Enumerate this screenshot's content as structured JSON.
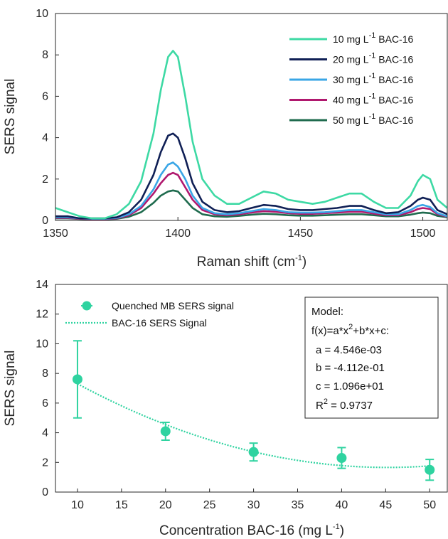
{
  "chart_data": [
    {
      "type": "line",
      "xlabel": "Raman shift (cm",
      "xlabel_sup": "-1",
      "xlabel_tail": ")",
      "ylabel": "SERS signal",
      "xlim": [
        1350,
        1510
      ],
      "ylim": [
        0,
        10
      ],
      "xticks": [
        "1350",
        "1400",
        "1450",
        "1500"
      ],
      "yticks": [
        "0",
        "2",
        "4",
        "6",
        "8",
        "10"
      ],
      "legend_position": "top-right",
      "grid": false,
      "series": [
        {
          "name_pre": "10 mg L",
          "name_sup": "-1",
          "name_post": " BAC-16",
          "color": "#3dd9a4",
          "x": [
            1350,
            1355,
            1360,
            1365,
            1370,
            1375,
            1380,
            1385,
            1390,
            1393,
            1396,
            1398,
            1400,
            1403,
            1406,
            1410,
            1415,
            1420,
            1425,
            1430,
            1435,
            1440,
            1445,
            1450,
            1455,
            1460,
            1465,
            1470,
            1475,
            1480,
            1485,
            1490,
            1495,
            1498,
            1500,
            1503,
            1506,
            1510
          ],
          "y": [
            0.6,
            0.4,
            0.2,
            0.1,
            0.1,
            0.3,
            0.8,
            1.9,
            4.2,
            6.3,
            7.9,
            8.2,
            7.9,
            6.0,
            3.8,
            2.0,
            1.2,
            0.8,
            0.8,
            1.1,
            1.4,
            1.3,
            1.0,
            0.9,
            0.8,
            0.9,
            1.1,
            1.3,
            1.3,
            0.9,
            0.6,
            0.6,
            1.2,
            1.9,
            2.2,
            2.0,
            1.0,
            0.6
          ]
        },
        {
          "name_pre": "20 mg L",
          "name_sup": "-1",
          "name_post": " BAC-16",
          "color": "#0f1f55",
          "x": [
            1350,
            1355,
            1360,
            1365,
            1370,
            1375,
            1380,
            1385,
            1390,
            1393,
            1396,
            1398,
            1400,
            1403,
            1406,
            1410,
            1415,
            1420,
            1425,
            1430,
            1435,
            1440,
            1445,
            1450,
            1455,
            1460,
            1465,
            1470,
            1475,
            1480,
            1485,
            1490,
            1495,
            1498,
            1500,
            1503,
            1506,
            1510
          ],
          "y": [
            0.2,
            0.2,
            0.1,
            0.1,
            0.1,
            0.15,
            0.4,
            1.0,
            2.2,
            3.3,
            4.1,
            4.2,
            4.0,
            3.0,
            1.8,
            0.9,
            0.5,
            0.4,
            0.45,
            0.6,
            0.75,
            0.7,
            0.55,
            0.5,
            0.5,
            0.55,
            0.6,
            0.7,
            0.7,
            0.5,
            0.35,
            0.4,
            0.7,
            1.0,
            1.1,
            1.0,
            0.5,
            0.3
          ]
        },
        {
          "name_pre": "30 mg L",
          "name_sup": "-1",
          "name_post": " BAC-16",
          "color": "#3aa6e6",
          "x": [
            1350,
            1355,
            1360,
            1365,
            1370,
            1375,
            1380,
            1385,
            1390,
            1393,
            1396,
            1398,
            1400,
            1403,
            1406,
            1410,
            1415,
            1420,
            1425,
            1430,
            1435,
            1440,
            1445,
            1450,
            1455,
            1460,
            1465,
            1470,
            1475,
            1480,
            1485,
            1490,
            1495,
            1498,
            1500,
            1503,
            1506,
            1510
          ],
          "y": [
            0.15,
            0.15,
            0.1,
            0.08,
            0.08,
            0.12,
            0.3,
            0.7,
            1.5,
            2.2,
            2.7,
            2.8,
            2.6,
            2.0,
            1.2,
            0.6,
            0.35,
            0.3,
            0.35,
            0.45,
            0.55,
            0.5,
            0.4,
            0.38,
            0.38,
            0.4,
            0.45,
            0.5,
            0.5,
            0.4,
            0.3,
            0.3,
            0.5,
            0.7,
            0.75,
            0.65,
            0.35,
            0.2
          ]
        },
        {
          "name_pre": "40 mg L",
          "name_sup": "-1",
          "name_post": " BAC-16",
          "color": "#b0186e",
          "x": [
            1350,
            1355,
            1360,
            1365,
            1370,
            1375,
            1380,
            1385,
            1390,
            1393,
            1396,
            1398,
            1400,
            1403,
            1406,
            1410,
            1415,
            1420,
            1425,
            1430,
            1435,
            1440,
            1445,
            1450,
            1455,
            1460,
            1465,
            1470,
            1475,
            1480,
            1485,
            1490,
            1495,
            1498,
            1500,
            1503,
            1506,
            1510
          ],
          "y": [
            0.12,
            0.12,
            0.08,
            0.06,
            0.06,
            0.1,
            0.25,
            0.6,
            1.3,
            1.8,
            2.2,
            2.3,
            2.2,
            1.6,
            1.0,
            0.5,
            0.3,
            0.25,
            0.3,
            0.38,
            0.45,
            0.42,
            0.35,
            0.32,
            0.32,
            0.35,
            0.38,
            0.42,
            0.42,
            0.33,
            0.25,
            0.25,
            0.4,
            0.55,
            0.6,
            0.55,
            0.3,
            0.18
          ]
        },
        {
          "name_pre": "50 mg L",
          "name_sup": "-1",
          "name_post": " BAC-16",
          "color": "#1f6b4e",
          "x": [
            1350,
            1355,
            1360,
            1365,
            1370,
            1375,
            1380,
            1385,
            1390,
            1393,
            1396,
            1398,
            1400,
            1403,
            1406,
            1410,
            1415,
            1420,
            1425,
            1430,
            1435,
            1440,
            1445,
            1450,
            1455,
            1460,
            1465,
            1470,
            1475,
            1480,
            1485,
            1490,
            1495,
            1498,
            1500,
            1503,
            1506,
            1510
          ],
          "y": [
            0.1,
            0.1,
            0.07,
            0.05,
            0.05,
            0.08,
            0.18,
            0.4,
            0.85,
            1.2,
            1.4,
            1.45,
            1.4,
            1.0,
            0.6,
            0.3,
            0.2,
            0.18,
            0.22,
            0.28,
            0.32,
            0.3,
            0.25,
            0.23,
            0.23,
            0.25,
            0.28,
            0.3,
            0.3,
            0.25,
            0.2,
            0.2,
            0.28,
            0.35,
            0.38,
            0.35,
            0.22,
            0.15
          ]
        }
      ]
    },
    {
      "type": "scatter",
      "xlabel": "Concentration BAC-16 (mg L",
      "xlabel_sup": "-1",
      "xlabel_tail": ")",
      "ylabel": "SERS signal",
      "xlim": [
        7.5,
        52
      ],
      "ylim": [
        0,
        14
      ],
      "xticks": [
        "10",
        "15",
        "20",
        "25",
        "30",
        "35",
        "40",
        "45",
        "50"
      ],
      "yticks": [
        "0",
        "2",
        "4",
        "6",
        "8",
        "10",
        "12",
        "14"
      ],
      "legend_position": "top-left",
      "grid": false,
      "color": "#2fd3a0",
      "points": {
        "name": "Quenched MB SERS signal",
        "x": [
          10,
          20,
          30,
          40,
          50
        ],
        "y": [
          7.6,
          4.1,
          2.7,
          2.3,
          1.5
        ],
        "err": [
          2.6,
          0.6,
          0.6,
          0.7,
          0.7
        ]
      },
      "fit": {
        "name": "BAC-16 SERS Signal",
        "a": 0.004546,
        "b": -0.4112,
        "c": 10.96,
        "x_range": [
          10,
          50
        ]
      },
      "model_box": {
        "title": "Model:",
        "formula_parts": [
          "f(x)=a*x",
          "2",
          "+b*x+c:"
        ],
        "a": "a = 4.546e-03",
        "b": "b = -4.112e-01",
        "c": "c = 1.096e+01",
        "r2_pre": "R",
        "r2_sup": "2",
        "r2_post": " = 0.9737"
      }
    }
  ]
}
